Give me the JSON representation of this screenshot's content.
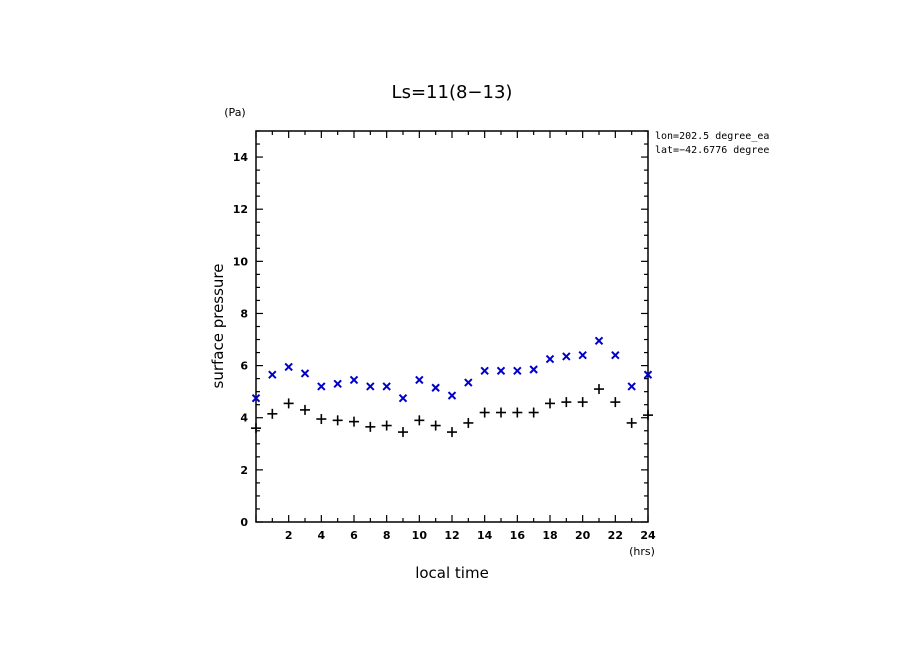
{
  "chart_data": {
    "type": "scatter",
    "title": "Ls=11(8−13)",
    "xlabel": "local time",
    "ylabel": "surface pressure",
    "xunit": "(hrs)",
    "yunit": "(Pa)",
    "xlim": [
      0,
      24
    ],
    "ylim": [
      0,
      15
    ],
    "xticks": [
      "2",
      "4",
      "6",
      "8",
      "10",
      "12",
      "14",
      "16",
      "18",
      "20",
      "22",
      "24"
    ],
    "yticks": [
      "0",
      "2",
      "4",
      "6",
      "8",
      "10",
      "12",
      "14"
    ],
    "annotations": [
      "lon=202.5 degree_ea",
      "lat=−42.6776 degree"
    ],
    "grid": false,
    "series": [
      {
        "marker": "x",
        "color": "#0000cc",
        "x": [
          0,
          1,
          2,
          3,
          4,
          5,
          6,
          7,
          8,
          9,
          10,
          11,
          12,
          13,
          14,
          15,
          16,
          17,
          18,
          19,
          20,
          21,
          22,
          23,
          24
        ],
        "y": [
          4.75,
          5.65,
          5.95,
          5.7,
          5.2,
          5.3,
          5.45,
          5.2,
          5.2,
          4.75,
          5.45,
          5.15,
          4.85,
          5.35,
          5.8,
          5.8,
          5.8,
          5.85,
          6.25,
          6.35,
          6.4,
          6.95,
          6.4,
          5.2,
          5.65
        ]
      },
      {
        "marker": "+",
        "color": "#000000",
        "x": [
          0,
          1,
          2,
          3,
          4,
          5,
          6,
          7,
          8,
          9,
          10,
          11,
          12,
          13,
          14,
          15,
          16,
          17,
          18,
          19,
          20,
          21,
          22,
          23,
          24
        ],
        "y": [
          3.6,
          4.15,
          4.55,
          4.3,
          3.95,
          3.9,
          3.85,
          3.65,
          3.7,
          3.45,
          3.9,
          3.7,
          3.45,
          3.8,
          4.2,
          4.2,
          4.2,
          4.2,
          4.55,
          4.6,
          4.6,
          5.1,
          4.6,
          3.8,
          4.1
        ]
      }
    ]
  }
}
